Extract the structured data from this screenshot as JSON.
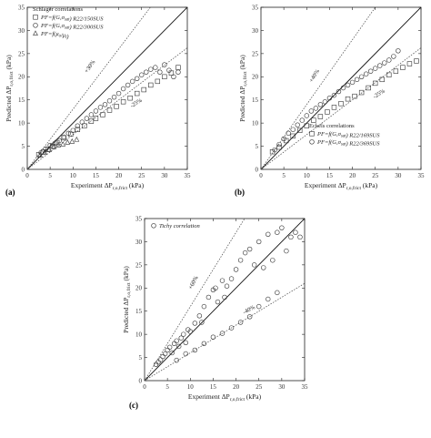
{
  "chart_data": [
    {
      "type": "scatter",
      "panel_label": "(a)",
      "xlabel": "Experiment ΔP_r,o,frict (kPa)",
      "ylabel": "Predicted ΔP_r,o,frict (kPa)",
      "xlim": [
        0,
        35
      ],
      "ylim": [
        0,
        35
      ],
      "xticks": [
        "0",
        "5",
        "10",
        "15",
        "20",
        "25",
        "30",
        "35"
      ],
      "yticks": [
        "0",
        "5",
        "10",
        "15",
        "20",
        "25",
        "30",
        "35"
      ],
      "legend_title": "Schlager correlations",
      "legend_position": "top-left",
      "bands": [
        {
          "label": "+30%",
          "slope": 1.3
        },
        {
          "label": "-25%",
          "slope": 0.75
        }
      ],
      "series": [
        {
          "name": "PF=f(G,σ_sat) R22/150SUS",
          "marker": "square",
          "x": [
            2.5,
            3.5,
            4.5,
            5.5,
            6.5,
            8,
            9.5,
            11,
            12.5,
            14,
            15,
            16.5,
            18,
            19.5,
            21,
            22.5,
            24,
            25.5,
            27,
            28.5,
            30,
            31.5,
            33
          ],
          "y": [
            3.2,
            3.8,
            4.3,
            5,
            5.8,
            6.8,
            7.6,
            8.6,
            9.4,
            10.4,
            11,
            11.8,
            12.8,
            13.6,
            14.6,
            15.4,
            16.4,
            17.2,
            18.2,
            19,
            20,
            20.8,
            22
          ]
        },
        {
          "name": "PF=f(G,σ_sat) R22/300SUS",
          "marker": "circle",
          "x": [
            3,
            4,
            5,
            6,
            7,
            8,
            9,
            10,
            11,
            12,
            13,
            14,
            15,
            16,
            17,
            18,
            19,
            20,
            21,
            22,
            23,
            24,
            25,
            26,
            27,
            28,
            29,
            30,
            31,
            32,
            33
          ],
          "y": [
            3.6,
            4.4,
            5.2,
            5.6,
            6.2,
            7,
            7.8,
            8.4,
            9.4,
            10.2,
            11,
            11.8,
            12.6,
            13.4,
            14,
            14.8,
            15.6,
            16.4,
            17.4,
            18.2,
            19,
            19.6,
            20.4,
            21,
            21.6,
            22,
            21,
            22.6,
            21.4,
            20,
            21
          ]
        },
        {
          "name": "PF=f(μ_o/μ_l)",
          "marker": "triangle",
          "x": [
            2.8,
            3.8,
            4.8,
            5.8,
            6.8,
            7.8,
            8.8,
            9.8,
            10.8
          ],
          "y": [
            3,
            3.6,
            4.2,
            4.8,
            5.2,
            5.4,
            5.8,
            6,
            6.4
          ]
        }
      ]
    },
    {
      "type": "scatter",
      "panel_label": "(b)",
      "xlabel": "Experiment ΔP_r,o,frict (kPa)",
      "ylabel": "Predicted ΔP_r,o,frict (kPa)",
      "xlim": [
        0,
        35
      ],
      "ylim": [
        0,
        35
      ],
      "xticks": [
        "0",
        "5",
        "10",
        "15",
        "20",
        "25",
        "30",
        "35"
      ],
      "yticks": [
        "0",
        "5",
        "10",
        "15",
        "20",
        "25",
        "30",
        "35"
      ],
      "legend_title": "Eckels correlations",
      "legend_position": "bottom-right",
      "bands": [
        {
          "label": "+40%",
          "slope": 1.4
        },
        {
          "label": "-25%",
          "slope": 0.75
        }
      ],
      "series": [
        {
          "name": "PF=f(G,σ_sat) R22/169SUS",
          "marker": "square",
          "x": [
            2.5,
            4,
            5.5,
            7,
            8.5,
            10,
            11.5,
            13,
            14.5,
            16,
            17.5,
            19,
            20.5,
            22,
            23.5,
            25,
            26.5,
            28,
            29.5,
            31,
            32.5,
            34
          ],
          "y": [
            3.8,
            4.8,
            6.2,
            7.2,
            8.4,
            9.4,
            10.6,
            11.4,
            12.4,
            13.4,
            14.2,
            15.2,
            15.8,
            16.6,
            17.6,
            18.6,
            19.4,
            20.4,
            21.2,
            22,
            22.8,
            23.4
          ]
        },
        {
          "name": "PF=f(G,σ_sat) R22/369SUS",
          "marker": "circle",
          "x": [
            3,
            4,
            5,
            6,
            7,
            8,
            9,
            10,
            11,
            12,
            13,
            14,
            15,
            16,
            17,
            18,
            19,
            20,
            21,
            22,
            23,
            24,
            25,
            26,
            27,
            28,
            29,
            30
          ],
          "y": [
            4.2,
            5.4,
            6.6,
            7.8,
            8.6,
            9.6,
            10.6,
            11.6,
            12.6,
            13.2,
            14,
            14.6,
            15.4,
            16,
            16.8,
            17.6,
            18.2,
            18.8,
            19.4,
            20,
            20.6,
            21.2,
            21.8,
            22.4,
            23,
            23.6,
            24.4,
            25.6
          ]
        }
      ]
    },
    {
      "type": "scatter",
      "panel_label": "(c)",
      "xlabel": "Experiment ΔP_r,o,frict (kPa)",
      "ylabel": "Predicted ΔP_r,o,frict (kPa)",
      "xlim": [
        0,
        35
      ],
      "ylim": [
        0,
        35
      ],
      "xticks": [
        "0",
        "5",
        "10",
        "15",
        "20",
        "25",
        "30",
        "35"
      ],
      "yticks": [
        "0",
        "5",
        "10",
        "15",
        "20",
        "25",
        "30",
        "35"
      ],
      "legend_title": "",
      "legend_position": "top-left",
      "bands": [
        {
          "label": "+60%",
          "slope": 1.6
        },
        {
          "label": "-40%",
          "slope": 0.6
        }
      ],
      "series": [
        {
          "name": "Tichy correlation",
          "marker": "circle",
          "x": [
            2.5,
            3,
            3.5,
            4,
            4.5,
            5,
            5.5,
            6,
            6.5,
            7,
            7.5,
            8,
            8.5,
            9,
            9.5,
            10,
            11,
            12,
            12.5,
            13,
            14,
            15,
            15.5,
            16,
            17,
            17.5,
            18,
            19,
            20,
            21,
            22,
            23,
            24,
            25,
            26,
            27,
            28,
            29,
            30,
            31,
            32,
            33,
            34,
            7,
            9,
            11,
            13,
            15,
            17,
            19,
            21,
            23,
            25,
            27,
            29
          ],
          "y": [
            3.5,
            4,
            4.5,
            5.2,
            5.8,
            6.6,
            7.2,
            6,
            8,
            8.6,
            7.4,
            9.2,
            10,
            8.2,
            11,
            10.6,
            12.4,
            14,
            12.6,
            16,
            18,
            19.6,
            20,
            17,
            21.6,
            18,
            20.4,
            22,
            24,
            26,
            27.6,
            28.4,
            25,
            30,
            24.4,
            31.6,
            26,
            32,
            33,
            28,
            31,
            32,
            31,
            4.4,
            5.8,
            6.6,
            8,
            9.4,
            10.2,
            11.4,
            12.6,
            13.8,
            16,
            17.6,
            19
          ]
        }
      ]
    }
  ]
}
